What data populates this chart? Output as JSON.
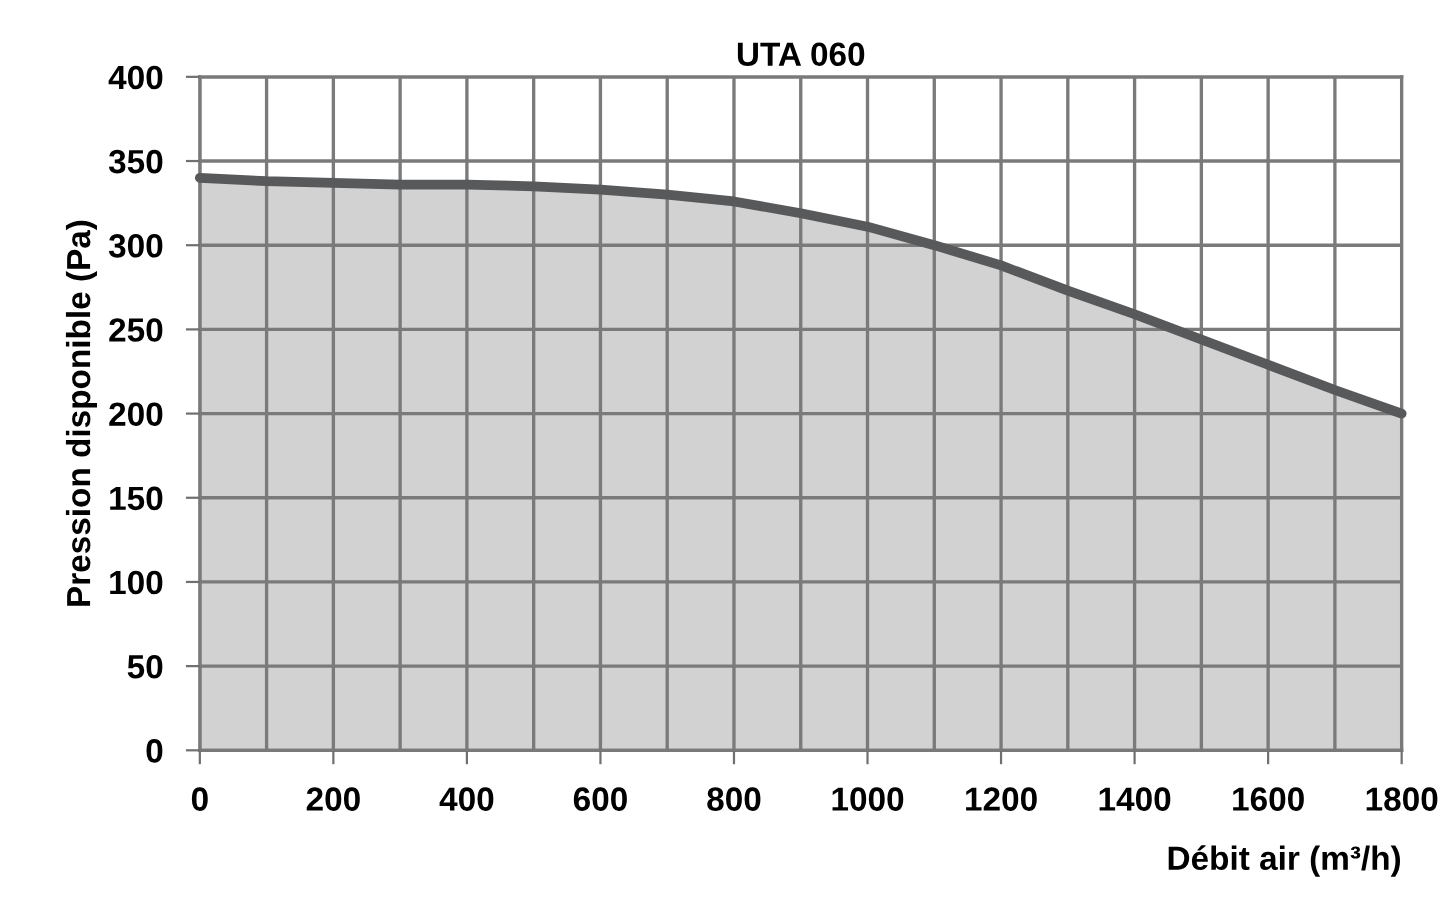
{
  "chart_data": {
    "type": "area",
    "title": "UTA 060",
    "xlabel": "Débit air (m³/h)",
    "ylabel": "Pression disponible (Pa)",
    "x": [
      0,
      100,
      200,
      300,
      400,
      500,
      600,
      700,
      800,
      900,
      1000,
      1100,
      1200,
      1300,
      1400,
      1500,
      1600,
      1700,
      1800
    ],
    "series": [
      {
        "color": "#58595b",
        "values": [
          340,
          338,
          337,
          336,
          336,
          335,
          333,
          330,
          326,
          319,
          311,
          300,
          288,
          273,
          259,
          244,
          229,
          214,
          200
        ]
      }
    ],
    "xlim": [
      0,
      1800
    ],
    "ylim": [
      0,
      400
    ],
    "xticks": [
      0,
      {
        "value": 100,
        "label": null
      },
      200,
      {
        "value": 300,
        "label": null
      },
      400,
      {
        "value": 500,
        "label": null
      },
      600,
      {
        "value": 700,
        "label": null
      },
      800,
      {
        "value": 900,
        "label": null
      },
      1000,
      {
        "value": 1100,
        "label": null
      },
      1200,
      {
        "value": 1300,
        "label": null
      },
      1400,
      {
        "value": 1500,
        "label": null
      },
      1600,
      {
        "value": 1700,
        "label": null
      },
      1800
    ],
    "yticks": [
      0,
      50,
      100,
      150,
      200,
      250,
      300,
      350,
      400
    ],
    "grid": true,
    "legend": false
  }
}
